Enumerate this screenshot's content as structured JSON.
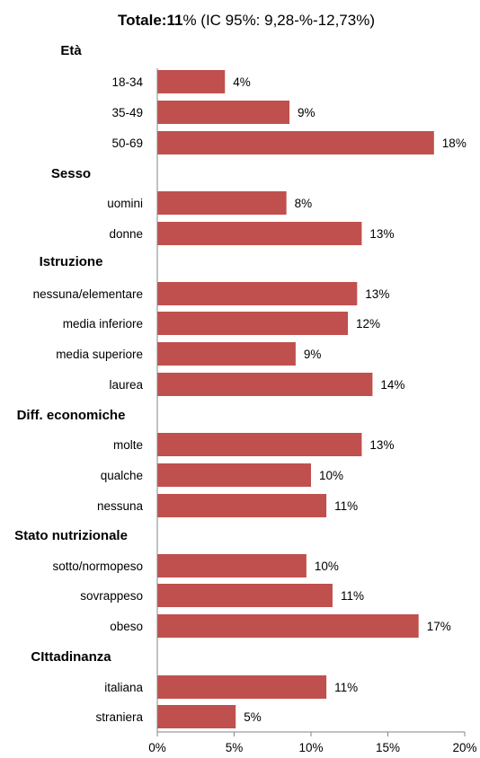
{
  "chart_data": {
    "type": "bar",
    "orientation": "horizontal",
    "title": {
      "bold": "Totale:11",
      "rest": "% (IC 95%: 9,28-%-12,73%)"
    },
    "bar_color": "#c0504d",
    "xlim": [
      0,
      20
    ],
    "x_ticks": [
      0,
      5,
      10,
      15,
      20
    ],
    "x_tick_labels": [
      "0%",
      "5%",
      "10%",
      "15%",
      "20%"
    ],
    "groups": [
      {
        "name": "Età",
        "items": [
          {
            "label": "18-34",
            "value": 4.4,
            "value_label": "4%"
          },
          {
            "label": "35-49",
            "value": 8.6,
            "value_label": "9%"
          },
          {
            "label": "50-69",
            "value": 18.0,
            "value_label": "18%"
          }
        ]
      },
      {
        "name": "Sesso",
        "items": [
          {
            "label": "uomini",
            "value": 8.4,
            "value_label": "8%"
          },
          {
            "label": "donne",
            "value": 13.3,
            "value_label": "13%"
          }
        ]
      },
      {
        "name": "Istruzione",
        "items": [
          {
            "label": "nessuna/elementare",
            "value": 13.0,
            "value_label": "13%"
          },
          {
            "label": "media inferiore",
            "value": 12.4,
            "value_label": "12%"
          },
          {
            "label": "media superiore",
            "value": 9.0,
            "value_label": "9%"
          },
          {
            "label": "laurea",
            "value": 14.0,
            "value_label": "14%"
          }
        ]
      },
      {
        "name": "Diff. economiche",
        "items": [
          {
            "label": "molte",
            "value": 13.3,
            "value_label": "13%"
          },
          {
            "label": "qualche",
            "value": 10.0,
            "value_label": "10%"
          },
          {
            "label": "nessuna",
            "value": 11.0,
            "value_label": "11%"
          }
        ]
      },
      {
        "name": "Stato nutrizionale",
        "items": [
          {
            "label": "sotto/normopeso",
            "value": 9.7,
            "value_label": "10%"
          },
          {
            "label": "sovrappeso",
            "value": 11.4,
            "value_label": "11%"
          },
          {
            "label": "obeso",
            "value": 17.0,
            "value_label": "17%"
          }
        ]
      },
      {
        "name": "CIttadinanza",
        "items": [
          {
            "label": "italiana",
            "value": 11.0,
            "value_label": "11%"
          },
          {
            "label": "straniera",
            "value": 5.1,
            "value_label": "5%"
          }
        ]
      }
    ]
  }
}
